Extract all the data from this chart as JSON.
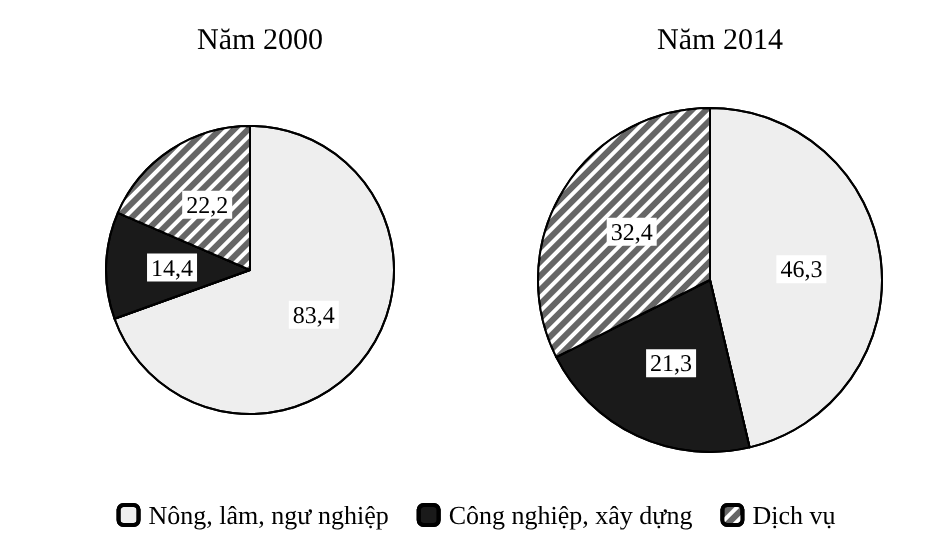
{
  "chart_data": {
    "type": "pie",
    "categories": [
      "Nông, lâm, ngư nghiệp",
      "Công nghiệp, xây dựng",
      "Dịch vụ"
    ],
    "colors": [
      "#eeeeee",
      "#1a1a1a",
      "#666666"
    ],
    "legend": "bottom",
    "series": [
      {
        "name": "Năm 2000",
        "values": [
          83.4,
          14.4,
          22.2
        ],
        "value_labels": [
          "83,4",
          "14,4",
          "22,2"
        ]
      },
      {
        "name": "Năm 2014",
        "values": [
          46.3,
          21.3,
          32.4
        ],
        "value_labels": [
          "46,3",
          "21,3",
          "32,4"
        ]
      }
    ]
  }
}
